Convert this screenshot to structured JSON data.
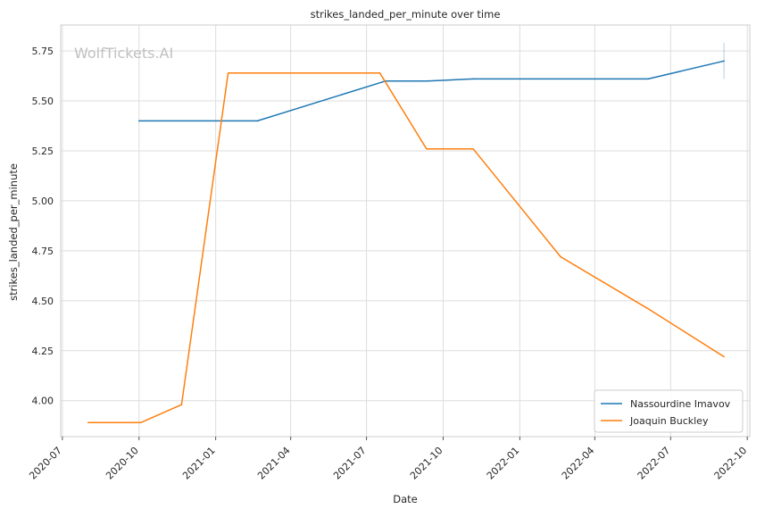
{
  "chart_data": {
    "type": "line",
    "title": "strikes_landed_per_minute over time",
    "xlabel": "Date",
    "ylabel": "strikes_landed_per_minute",
    "watermark": "WolfTickets.AI",
    "xlim": [
      "2020-06-29",
      "2022-10-04"
    ],
    "ylim": [
      3.82,
      5.88
    ],
    "x_ticks": [
      "2020-07",
      "2020-10",
      "2021-01",
      "2021-04",
      "2021-07",
      "2021-10",
      "2022-01",
      "2022-04",
      "2022-07",
      "2022-10"
    ],
    "x_tick_dates": [
      "2020-07-01",
      "2020-10-01",
      "2021-01-01",
      "2021-04-01",
      "2021-07-01",
      "2021-10-01",
      "2022-01-01",
      "2022-04-01",
      "2022-07-01",
      "2022-10-01"
    ],
    "y_ticks": [
      4.0,
      4.25,
      4.5,
      4.75,
      5.0,
      5.25,
      5.5,
      5.75
    ],
    "y_tick_labels": [
      "4.00",
      "4.25",
      "4.50",
      "4.75",
      "5.00",
      "5.25",
      "5.50",
      "5.75"
    ],
    "grid": true,
    "legend_position": "bottom-right",
    "series": [
      {
        "name": "Nassourdine Imavov",
        "color": "#1f77b4",
        "x": [
          "2020-10-01",
          "2021-02-20",
          "2021-07-24",
          "2021-09-12",
          "2021-11-06",
          "2022-06-04",
          "2022-09-03"
        ],
        "y": [
          5.4,
          5.4,
          5.6,
          5.6,
          5.61,
          5.61,
          5.7
        ],
        "error_bar": {
          "x": "2022-09-03",
          "low": 5.61,
          "high": 5.79
        }
      },
      {
        "name": "Joaquin Buckley",
        "color": "#ff7f0e",
        "x": [
          "2020-08-01",
          "2020-10-03",
          "2020-11-21",
          "2021-01-16",
          "2021-07-17",
          "2021-09-11",
          "2021-11-06",
          "2022-02-19",
          "2022-06-04",
          "2022-09-03"
        ],
        "y": [
          3.89,
          3.89,
          3.98,
          5.64,
          5.64,
          5.26,
          5.26,
          4.72,
          4.46,
          4.22
        ]
      }
    ]
  }
}
